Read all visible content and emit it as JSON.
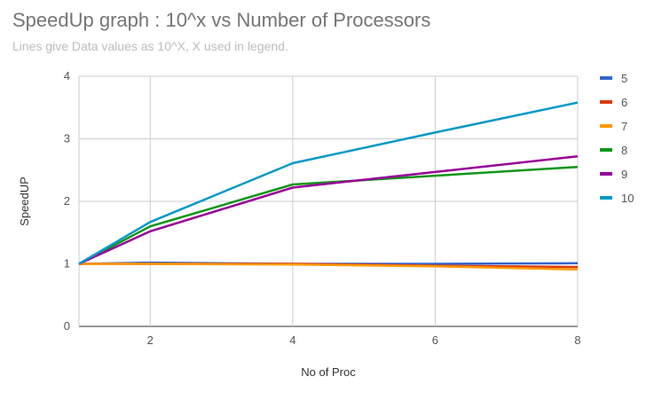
{
  "chart_data": {
    "type": "line",
    "title": "SpeedUp graph : 10^x vs Number of Processors",
    "subtitle": "Lines give Data values as 10^X, X used in legend.",
    "xlabel": "No of Proc",
    "ylabel": "SpeedUP",
    "x": [
      1,
      2,
      4,
      6,
      8
    ],
    "xticks": [
      "2",
      "4",
      "6",
      "8"
    ],
    "yticks": [
      "0",
      "1",
      "2",
      "3",
      "4"
    ],
    "xlim": [
      1,
      8
    ],
    "ylim": [
      0,
      4
    ],
    "grid": true,
    "legend_position": "right",
    "series": [
      {
        "name": "5",
        "color": "#3366cc",
        "values": [
          1.0,
          1.02,
          1.0,
          1.0,
          1.01
        ]
      },
      {
        "name": "6",
        "color": "#dc3912",
        "values": [
          1.0,
          1.0,
          1.0,
          0.97,
          0.95
        ]
      },
      {
        "name": "7",
        "color": "#ff9900",
        "values": [
          1.0,
          1.0,
          0.99,
          0.96,
          0.91
        ]
      },
      {
        "name": "8",
        "color": "#109618",
        "values": [
          1.0,
          1.6,
          2.27,
          2.41,
          2.55
        ]
      },
      {
        "name": "9",
        "color": "#990099",
        "values": [
          1.0,
          1.52,
          2.22,
          2.47,
          2.72
        ]
      },
      {
        "name": "10",
        "color": "#0099c6",
        "values": [
          1.0,
          1.67,
          2.61,
          3.1,
          3.58
        ]
      }
    ]
  }
}
